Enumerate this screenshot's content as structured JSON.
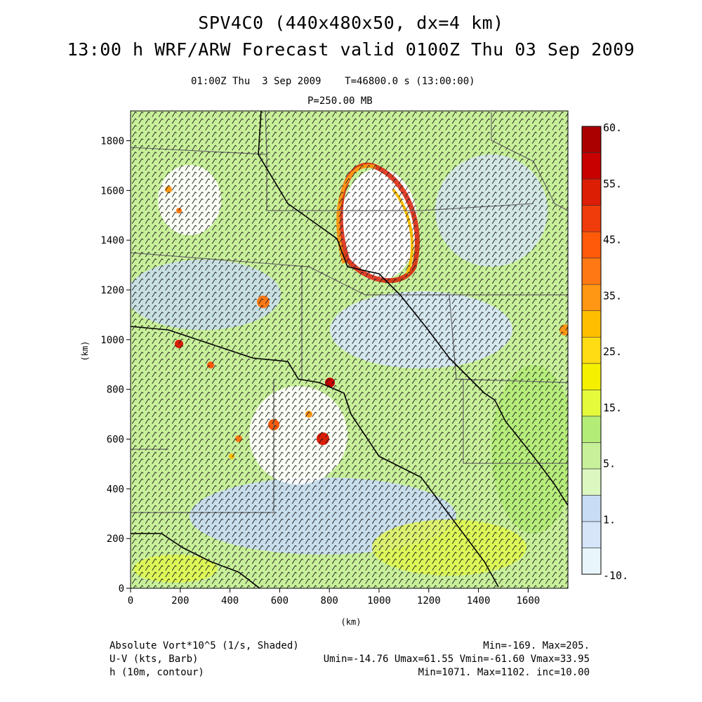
{
  "header": {
    "title_line1": "SPV4C0 (440x480x50, dx=4 km)",
    "title_line2": "13:00 h WRF/ARW Forecast valid 0100Z Thu 03 Sep 2009",
    "time_line": "01:00Z Thu  3 Sep 2009    T=46800.0 s (13:00:00)",
    "level_line": "P=250.00 MB"
  },
  "chart_data": {
    "type": "heatmap",
    "x_axis": {
      "label": "(km)",
      "range": [
        0,
        1760
      ],
      "ticks": [
        0,
        200,
        400,
        600,
        800,
        1000,
        1200,
        1400,
        1600
      ]
    },
    "y_axis": {
      "label": "(km)",
      "range": [
        0,
        1920
      ],
      "ticks": [
        0,
        200,
        400,
        600,
        800,
        1000,
        1200,
        1400,
        1600,
        1800
      ]
    },
    "colorbar": {
      "levels": [
        -10,
        1,
        5,
        15,
        25,
        35,
        45,
        55,
        60
      ],
      "tick_labels": [
        "60.",
        "55.",
        "45.",
        "35.",
        "25.",
        "15.",
        "5.",
        "1.",
        "-10."
      ],
      "colors": [
        "#e8f6fc",
        "#d6e6f8",
        "#c8dcf5",
        "#dcf7c0",
        "#c8f09a",
        "#b4ec78",
        "#e6fa3c",
        "#f4f000",
        "#ffdc14",
        "#ffbe00",
        "#ff9614",
        "#ff7814",
        "#ff5a0a",
        "#f03c0a",
        "#dc1e05",
        "#c80000",
        "#aa0000"
      ]
    },
    "fields": [
      {
        "name": "Absolute Vort*10^5 (1/s, Shaded)",
        "stats": "Min=-169. Max=205."
      },
      {
        "name": "U-V (kts, Barb)",
        "stats": "Umin=-14.76 Umax=61.55 Vmin=-61.60 Vmax=33.95"
      },
      {
        "name": "h (10m, contour)",
        "stats": "Min=1071. Max=1102. inc=10.00"
      }
    ]
  }
}
